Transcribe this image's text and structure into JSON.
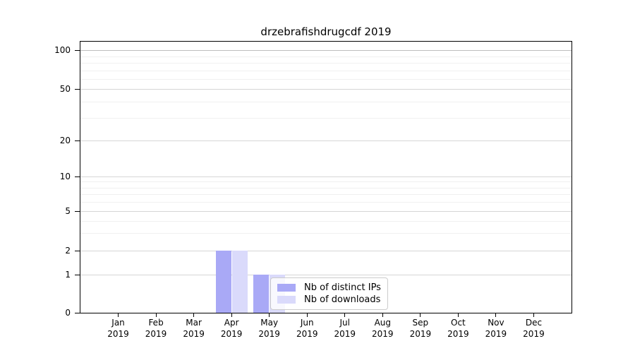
{
  "chart_data": {
    "type": "bar",
    "title": "drzebrafishdrugcdf 2019",
    "categories": [
      "Jan",
      "Feb",
      "Mar",
      "Apr",
      "May",
      "Jun",
      "Jul",
      "Aug",
      "Sep",
      "Oct",
      "Nov",
      "Dec"
    ],
    "year": "2019",
    "series": [
      {
        "name": "Nb of distinct IPs",
        "color": "#a9a9f6",
        "values": [
          0,
          0,
          0,
          2,
          1,
          0,
          0,
          0,
          0,
          0,
          0,
          0
        ]
      },
      {
        "name": "Nb of downloads",
        "color": "#dadafb",
        "values": [
          0,
          0,
          0,
          2,
          1,
          0,
          0,
          0,
          0,
          0,
          0,
          0
        ]
      }
    ],
    "xlabel": "",
    "ylabel": "",
    "y_axis": {
      "scale": "symlog-like",
      "range": [
        0,
        100
      ],
      "tick_values": [
        0,
        1,
        2,
        5,
        10,
        20,
        50,
        100
      ],
      "ticks": [
        {
          "v": 0,
          "f": 0.0
        },
        {
          "v": 1,
          "f": 0.1417
        },
        {
          "v": 2,
          "f": 0.228
        },
        {
          "v": 5,
          "f": 0.3749
        },
        {
          "v": 10,
          "f": 0.5026
        },
        {
          "v": 20,
          "f": 0.6347
        },
        {
          "v": 50,
          "f": 0.8247
        },
        {
          "v": 100,
          "f": 0.9681
        }
      ],
      "minor_values": [
        3,
        4,
        6,
        7,
        8,
        9,
        30,
        40,
        60,
        70,
        80,
        90
      ]
    },
    "grid": true,
    "legend": {
      "position": "lower-center",
      "labels": [
        "Nb of distinct IPs",
        "Nb of downloads"
      ]
    }
  },
  "colors": {
    "background": "#ffffff",
    "spine": "#000000",
    "grid_major": "#d6d6d6",
    "grid_minor": "#f0f0f0",
    "grid_top": "#bdbdbd",
    "legend_border": "#cccccc",
    "bar_distinct_ips": "#a9a9f6",
    "bar_downloads": "#dadafb"
  }
}
